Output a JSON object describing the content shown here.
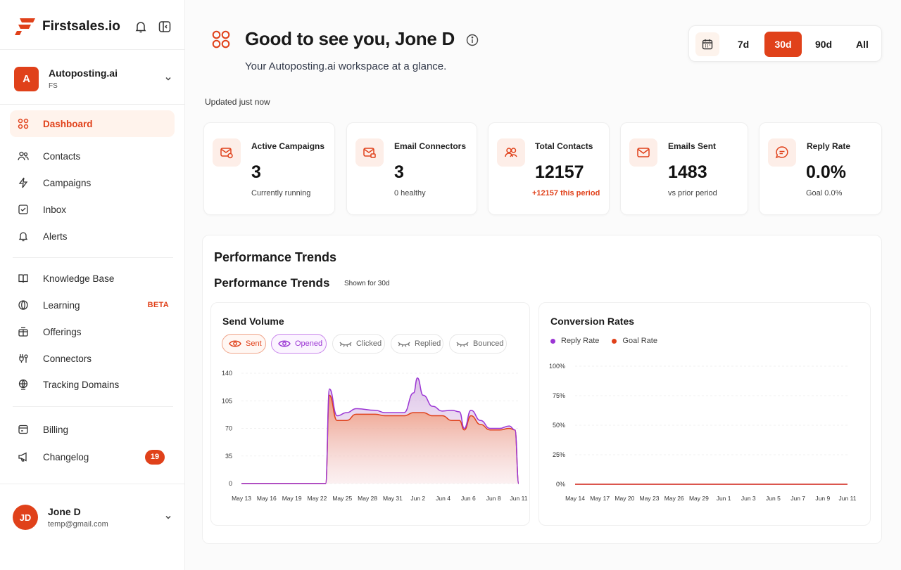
{
  "app": {
    "brand": "Firstsales.io",
    "colors": {
      "accent": "#e0411a",
      "accent_soft": "#fdeee8",
      "opened": "#9b35d4"
    }
  },
  "workspace": {
    "initial": "A",
    "name": "Autoposting.ai",
    "sub": "FS"
  },
  "nav": {
    "primary": [
      {
        "label": "Dashboard",
        "icon": "grid-icon",
        "active": true
      },
      {
        "label": "Contacts",
        "icon": "users-icon"
      },
      {
        "label": "Campaigns",
        "icon": "bolt-icon"
      },
      {
        "label": "Inbox",
        "icon": "inbox-icon"
      },
      {
        "label": "Alerts",
        "icon": "bell-icon"
      }
    ],
    "secondary": [
      {
        "label": "Knowledge Base",
        "icon": "book-icon"
      },
      {
        "label": "Learning",
        "icon": "globe-icon",
        "badge": "BETA"
      },
      {
        "label": "Offerings",
        "icon": "gift-icon"
      },
      {
        "label": "Connectors",
        "icon": "plug-icon"
      },
      {
        "label": "Tracking Domains",
        "icon": "globe-pin-icon"
      }
    ],
    "tertiary": [
      {
        "label": "Billing",
        "icon": "billing-icon"
      },
      {
        "label": "Changelog",
        "icon": "megaphone-icon",
        "count": "19"
      }
    ]
  },
  "user": {
    "initials": "JD",
    "name": "Jone D",
    "email": "temp@gmail.com"
  },
  "header": {
    "greeting": "Good to see you, Jone D",
    "subtitle": "Your Autoposting.ai workspace at a glance.",
    "updated": "Updated just now"
  },
  "range": {
    "options": [
      "7d",
      "30d",
      "90d",
      "All"
    ],
    "selected": "30d"
  },
  "kpis": [
    {
      "title": "Active Campaigns",
      "value": "3",
      "note": "Currently running",
      "icon": "mail-gear-icon"
    },
    {
      "title": "Email Connectors",
      "value": "3",
      "note": "0 healthy",
      "icon": "mail-plug-icon"
    },
    {
      "title": "Total Contacts",
      "value": "12157",
      "note": "+12157 this period",
      "note_accent": true,
      "icon": "users-icon"
    },
    {
      "title": "Emails Sent",
      "value": "1483",
      "note": "vs prior period",
      "icon": "mail-icon"
    },
    {
      "title": "Reply Rate",
      "value": "0.0%",
      "note": "Goal 0.0%",
      "icon": "chat-icon"
    }
  ],
  "performance": {
    "title": "Performance Trends",
    "subtitle": "Performance Trends",
    "shown_for": "Shown for 30d"
  },
  "send_volume": {
    "title": "Send Volume",
    "filters": [
      {
        "label": "Sent",
        "active": true
      },
      {
        "label": "Opened",
        "active": true
      },
      {
        "label": "Clicked",
        "active": false
      },
      {
        "label": "Replied",
        "active": false
      },
      {
        "label": "Bounced",
        "active": false
      }
    ]
  },
  "conversion": {
    "title": "Conversion Rates",
    "legend": [
      {
        "label": "Reply Rate",
        "color": "#9b35d4"
      },
      {
        "label": "Goal Rate",
        "color": "#e0411a"
      }
    ]
  },
  "chart_data": [
    {
      "type": "area",
      "title": "Send Volume",
      "ylim": [
        0,
        140
      ],
      "yticks": [
        0,
        35,
        70,
        105,
        140
      ],
      "xticks": [
        "May 13",
        "May 16",
        "May 19",
        "May 22",
        "May 25",
        "May 28",
        "May 31",
        "Jun 2",
        "Jun 4",
        "Jun 6",
        "Jun 8",
        "Jun 11"
      ],
      "series": [
        {
          "name": "Sent",
          "color": "#e0411a",
          "points": [
            [
              0,
              0
            ],
            [
              3,
              0
            ],
            [
              6,
              0
            ],
            [
              8.8,
              0
            ],
            [
              9.2,
              112
            ],
            [
              10,
              80
            ],
            [
              11,
              80
            ],
            [
              12,
              88
            ],
            [
              14,
              88
            ],
            [
              15,
              86
            ],
            [
              17,
              86
            ],
            [
              18,
              90
            ],
            [
              19,
              90
            ],
            [
              20,
              86
            ],
            [
              21,
              86
            ],
            [
              22,
              80
            ],
            [
              22.8,
              80
            ],
            [
              23.3,
              68
            ],
            [
              24,
              86
            ],
            [
              25,
              75
            ],
            [
              26,
              68
            ],
            [
              27,
              68
            ],
            [
              28,
              70
            ],
            [
              28.6,
              68
            ],
            [
              29,
              0
            ]
          ]
        },
        {
          "name": "Opened",
          "color": "#9b35d4",
          "points": [
            [
              0,
              0
            ],
            [
              3,
              0
            ],
            [
              6,
              0
            ],
            [
              8.8,
              0
            ],
            [
              9.2,
              120
            ],
            [
              10,
              86
            ],
            [
              11,
              90
            ],
            [
              12,
              95
            ],
            [
              14,
              93
            ],
            [
              15,
              90
            ],
            [
              17,
              90
            ],
            [
              18,
              115
            ],
            [
              18.4,
              134
            ],
            [
              19,
              112
            ],
            [
              20,
              98
            ],
            [
              21,
              92
            ],
            [
              22,
              93
            ],
            [
              22.8,
              91
            ],
            [
              23.3,
              70
            ],
            [
              24,
              93
            ],
            [
              25,
              80
            ],
            [
              26,
              70
            ],
            [
              27,
              70
            ],
            [
              28,
              73
            ],
            [
              28.6,
              68
            ],
            [
              29,
              0
            ]
          ]
        }
      ]
    },
    {
      "type": "line",
      "title": "Conversion Rates",
      "ylim": [
        0,
        100
      ],
      "yticks": [
        "0%",
        "25%",
        "50%",
        "75%",
        "100%"
      ],
      "xticks": [
        "May 14",
        "May 17",
        "May 20",
        "May 23",
        "May 26",
        "May 29",
        "Jun 1",
        "Jun 3",
        "Jun 5",
        "Jun 7",
        "Jun 9",
        "Jun 11"
      ],
      "series": [
        {
          "name": "Reply Rate",
          "values": [
            0,
            0,
            0,
            0,
            0,
            0,
            0,
            0,
            0,
            0,
            0,
            0
          ]
        },
        {
          "name": "Goal Rate",
          "values": [
            0,
            0,
            0,
            0,
            0,
            0,
            0,
            0,
            0,
            0,
            0,
            0
          ]
        }
      ]
    }
  ]
}
